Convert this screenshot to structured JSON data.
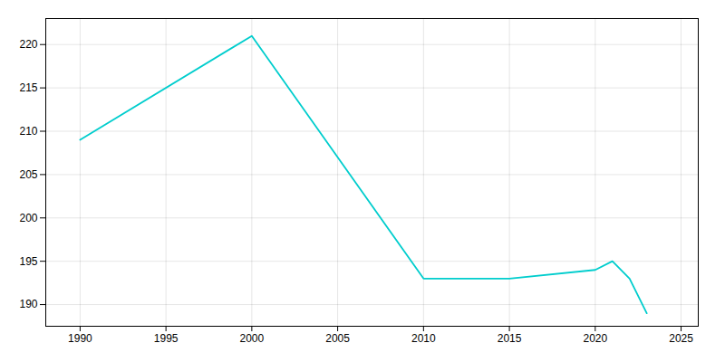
{
  "chart_data": {
    "type": "line",
    "x": [
      1990,
      2000,
      2010,
      2015,
      2020,
      2021,
      2022,
      2023
    ],
    "values": [
      209,
      221,
      193,
      193,
      194,
      195,
      193,
      189
    ],
    "color": "#00CDCD",
    "xlim": [
      1988,
      2026
    ],
    "ylim": [
      187.5,
      223
    ],
    "xticks": [
      1990,
      1995,
      2000,
      2005,
      2010,
      2015,
      2020,
      2025
    ],
    "yticks": [
      190,
      195,
      200,
      205,
      210,
      215,
      220
    ],
    "grid": true
  }
}
